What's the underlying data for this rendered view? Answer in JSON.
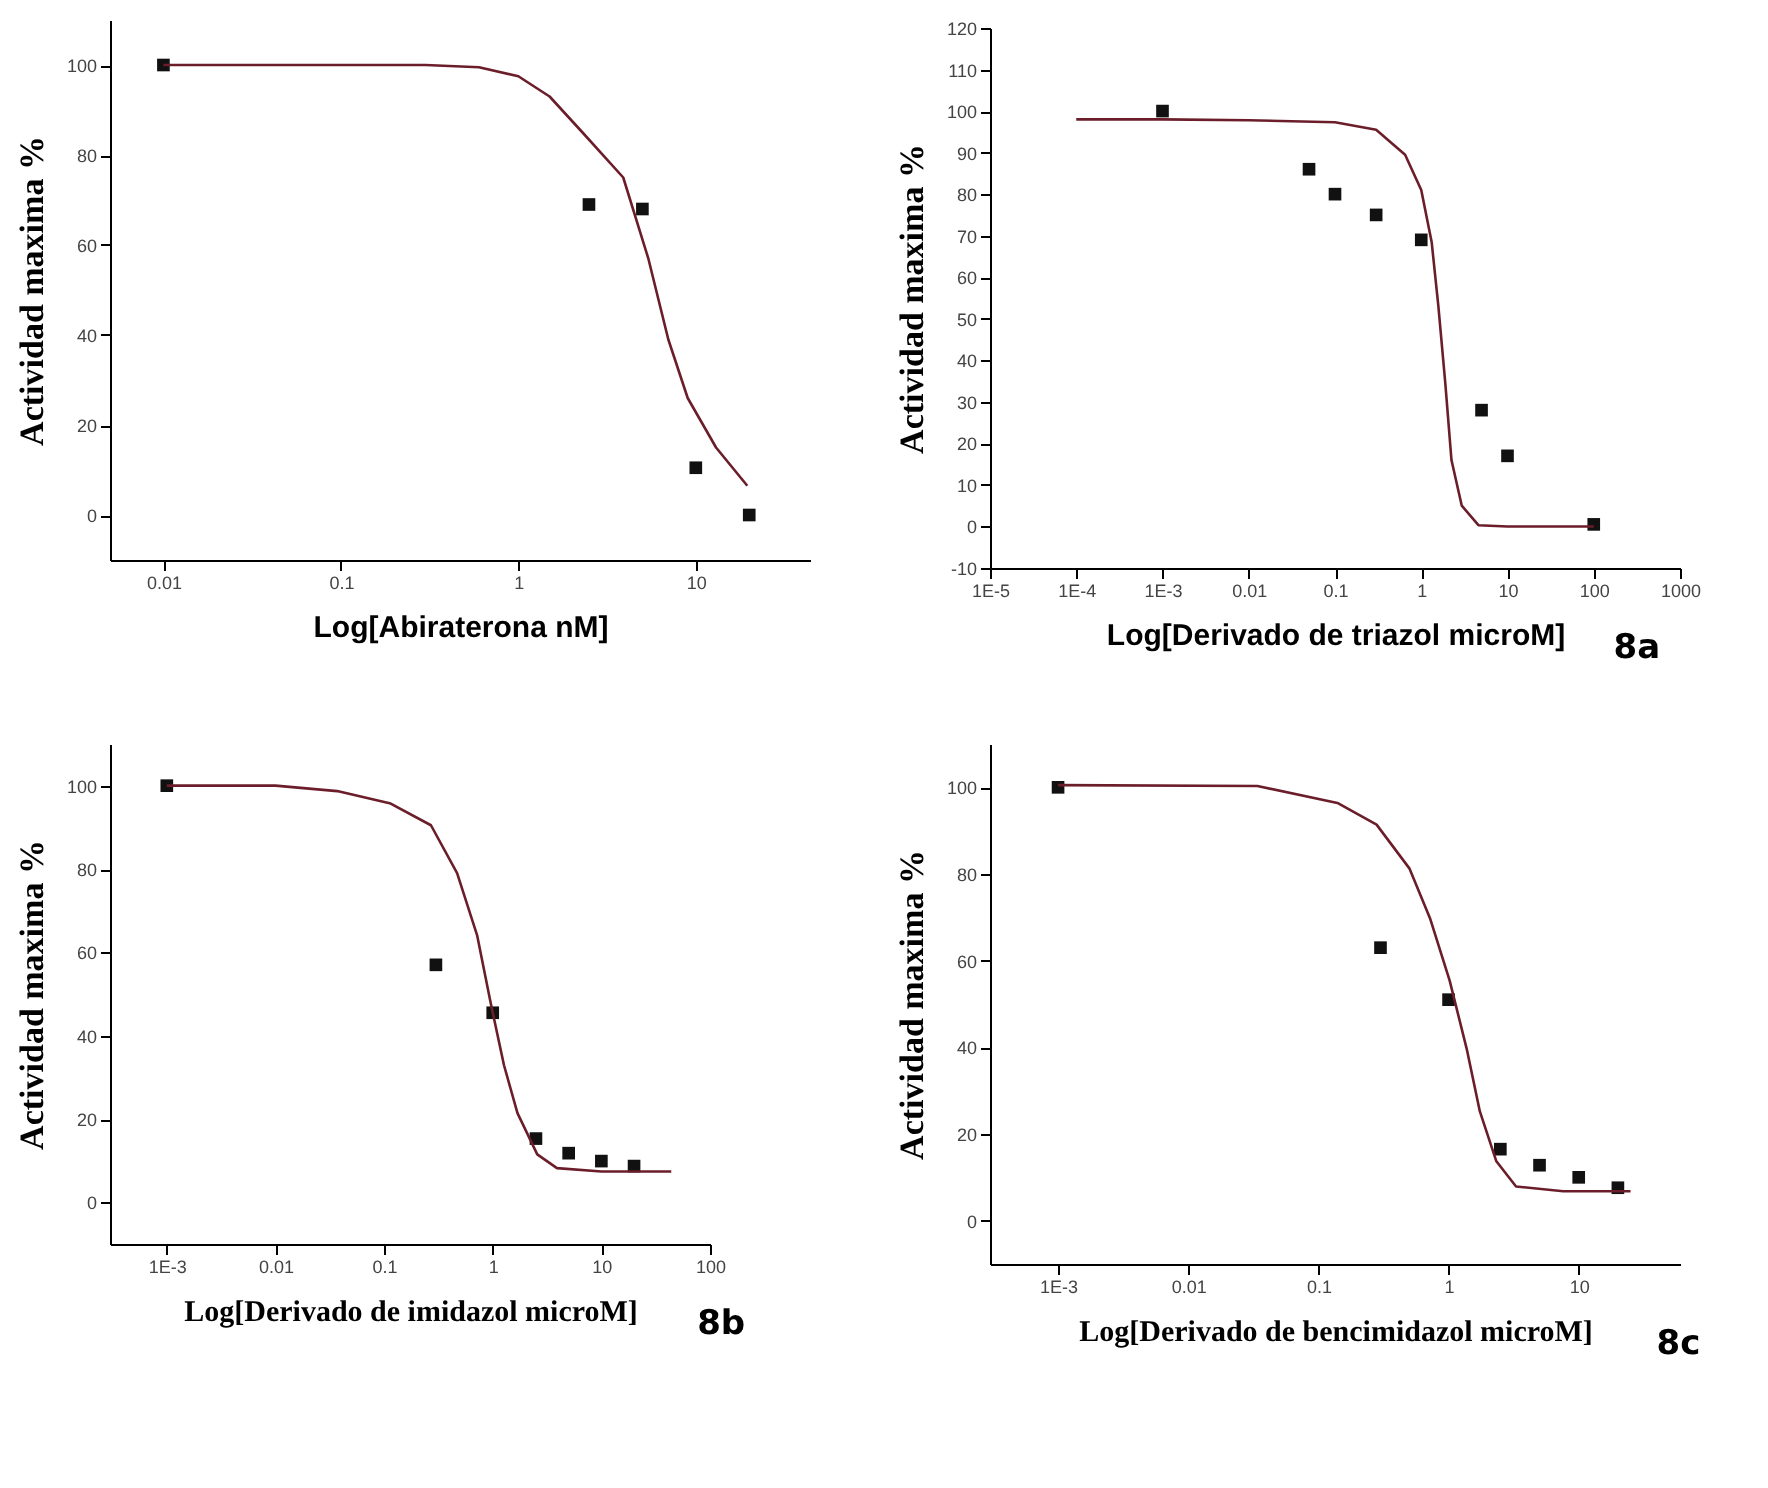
{
  "chart_data": [
    {
      "type": "scatter",
      "xlabel": "Log[Abiraterona nM]",
      "ylabel": "Actividad maxima %",
      "log": "x",
      "xlim": [
        0.005,
        44
      ],
      "ylim": [
        -10,
        110
      ],
      "xticks": [
        0.01,
        0.1,
        1,
        10
      ],
      "yticks": [
        0,
        20,
        40,
        60,
        80,
        100
      ],
      "series": [
        {
          "type": "scatter",
          "marker": "square",
          "color": "#111111",
          "x": [
            0.01,
            2.5,
            5,
            10,
            20
          ],
          "values": [
            100,
            69,
            68,
            10.5,
            0
          ]
        },
        {
          "type": "line",
          "color": "#6b1e2a",
          "x": [
            0.01,
            0.3,
            0.6,
            1,
            1.5,
            2.3,
            3.9,
            5.4,
            7,
            9,
            13,
            19.5
          ],
          "values": [
            100,
            100,
            99.5,
            97.5,
            93,
            85,
            75,
            57,
            39,
            26,
            15,
            6.5
          ]
        }
      ]
    },
    {
      "type": "scatter",
      "xlabel": "Log[Derivado de triazol microM]",
      "ylabel": "Actividad maxima %",
      "annotations": [
        "8a"
      ],
      "log": "x",
      "xlim": [
        1e-05,
        1000
      ],
      "ylim": [
        -10,
        120
      ],
      "xticks": [
        {
          "value": 1e-05,
          "label": "1E-5"
        },
        {
          "value": 0.0001,
          "label": "1E-4"
        },
        {
          "value": 0.001,
          "label": "1E-3"
        },
        0.01,
        0.1,
        1,
        10,
        100,
        1000
      ],
      "yticks": [
        -10,
        0,
        10,
        20,
        30,
        40,
        50,
        60,
        70,
        80,
        90,
        100,
        110,
        120
      ],
      "series": [
        {
          "type": "scatter",
          "marker": "square",
          "color": "#111111",
          "x": [
            0.001,
            0.05,
            0.1,
            0.3,
            1,
            5,
            10,
            100
          ],
          "values": [
            100,
            86,
            80,
            75,
            69,
            28,
            17,
            0.5
          ]
        },
        {
          "type": "line",
          "color": "#6b1e2a",
          "x": [
            0.0001,
            0.001,
            0.01,
            0.1,
            0.3,
            0.65,
            1,
            1.32,
            1.58,
            1.9,
            2.24,
            2.95,
            4.6,
            10,
            100
          ],
          "values": [
            98,
            98,
            97.8,
            97.3,
            95.5,
            89.5,
            81,
            68.5,
            53,
            34.5,
            16,
            5,
            0.3,
            0,
            0
          ]
        }
      ]
    },
    {
      "type": "scatter",
      "xlabel": "Log[Derivado de imidazol microM]",
      "ylabel": "Actividad maxima %",
      "annotations": [
        "8b"
      ],
      "log": "x",
      "xlim": [
        0.0003,
        100
      ],
      "ylim": [
        -10,
        110
      ],
      "xticks": [
        {
          "value": 0.001,
          "label": "1E-3"
        },
        0.01,
        0.1,
        1,
        10,
        100
      ],
      "yticks": [
        0,
        20,
        40,
        60,
        80,
        100
      ],
      "series": [
        {
          "type": "scatter",
          "marker": "square",
          "color": "#111111",
          "x": [
            0.001,
            0.3,
            1,
            2.5,
            5,
            10,
            20
          ],
          "values": [
            100,
            57,
            45.5,
            15.3,
            11.8,
            9.9,
            8.7
          ]
        },
        {
          "type": "line",
          "color": "#6b1e2a",
          "x": [
            0.001,
            0.01,
            0.037,
            0.115,
            0.27,
            0.47,
            0.72,
            0.96,
            1.27,
            1.69,
            2.57,
            3.9,
            10,
            44
          ],
          "values": [
            100,
            100,
            98.7,
            95.7,
            90.5,
            79,
            64,
            47.7,
            32.9,
            21.4,
            11.5,
            8.2,
            7.4,
            7.4
          ]
        }
      ]
    },
    {
      "type": "scatter",
      "xlabel": "Log[Derivado de bencimidazol microM]",
      "ylabel": "Actividad maxima %",
      "annotations": [
        "8c"
      ],
      "log": "x",
      "xlim": [
        0.0003,
        60
      ],
      "ylim": [
        -10,
        110
      ],
      "xticks": [
        {
          "value": 0.001,
          "label": "1E-3"
        },
        0.01,
        0.1,
        1,
        10
      ],
      "yticks": [
        0,
        20,
        40,
        60,
        80,
        100
      ],
      "series": [
        {
          "type": "scatter",
          "marker": "square",
          "color": "#111111",
          "x": [
            0.001,
            0.3,
            1,
            2.5,
            5,
            10,
            20
          ],
          "values": [
            100,
            63,
            51,
            16.5,
            12.8,
            10,
            7.6
          ]
        },
        {
          "type": "line",
          "color": "#6b1e2a",
          "x": [
            0.001,
            0.034,
            0.14,
            0.28,
            0.5,
            0.72,
            1.02,
            1.38,
            1.74,
            2.33,
            3.3,
            7.6,
            25
          ],
          "values": [
            100.5,
            100.3,
            96.4,
            91.4,
            81.3,
            69.8,
            55.4,
            39.6,
            25.2,
            13.7,
            7.9,
            6.8,
            6.8
          ]
        }
      ]
    }
  ]
}
